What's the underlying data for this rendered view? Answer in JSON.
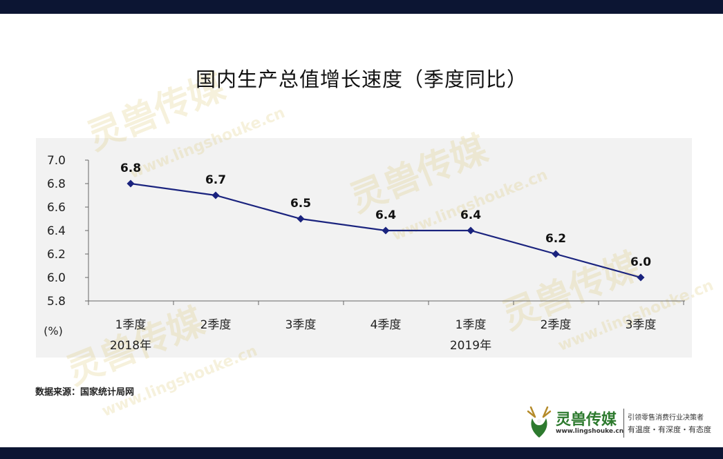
{
  "title": "国内生产总值增长速度（季度同比）",
  "source": "数据来源：国家统计局网",
  "watermark": {
    "brand": "灵兽传媒",
    "url": "www.lingshouke.cn"
  },
  "logo": {
    "brand": "灵兽传媒",
    "url": "www.lingshouke.cn",
    "slogan1": "引领零售消费行业决策者",
    "slogan2": "有温度・有深度・有态度"
  },
  "colors": {
    "line": "#1a237e",
    "band": "#0c1533",
    "panel": "#f2f2f2"
  },
  "chart_data": {
    "type": "line",
    "title": "国内生产总值增长速度（季度同比）",
    "ylabel": "(%)",
    "ylim": [
      5.8,
      7.0
    ],
    "yticks": [
      "7.0",
      "6.8",
      "6.6",
      "6.4",
      "6.2",
      "6.0",
      "5.8"
    ],
    "categories": [
      "1季度",
      "2季度",
      "3季度",
      "4季度",
      "1季度",
      "2季度",
      "3季度"
    ],
    "year_labels": [
      {
        "index": 0,
        "label": "2018年"
      },
      {
        "index": 4,
        "label": "2019年"
      }
    ],
    "values": [
      6.8,
      6.7,
      6.5,
      6.4,
      6.4,
      6.2,
      6.0
    ],
    "data_labels": [
      "6.8",
      "6.7",
      "6.5",
      "6.4",
      "6.4",
      "6.2",
      "6.0"
    ],
    "grid": false,
    "marker": "diamond"
  }
}
